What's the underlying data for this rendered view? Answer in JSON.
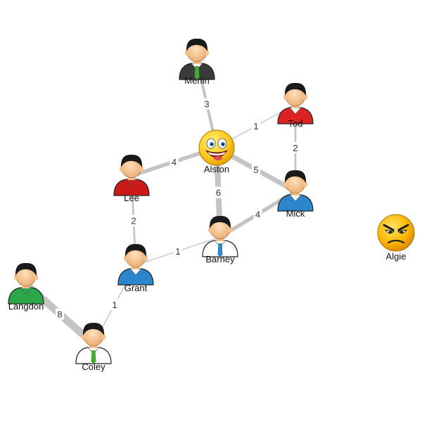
{
  "graph": {
    "nodes": [
      {
        "id": "merlin",
        "label": "Merlin",
        "icon": "person-icon",
        "shirt": "#3a3a3a",
        "tie": "#44aa33",
        "collar": "#ffffff"
      },
      {
        "id": "tod",
        "label": "Tod",
        "icon": "person-icon",
        "shirt": "#dd2222",
        "tie": "",
        "collar": "#ffffff"
      },
      {
        "id": "alston",
        "label": "Alston",
        "icon": "smiley-icon"
      },
      {
        "id": "lee",
        "label": "Lee",
        "icon": "person-icon",
        "shirt": "#cc1a1a",
        "tie": "",
        "collar": "#cc1a1a"
      },
      {
        "id": "mick",
        "label": "Mick",
        "icon": "person-icon",
        "shirt": "#2b86cc",
        "tie": "",
        "collar": "#ffffff"
      },
      {
        "id": "barney",
        "label": "Barney",
        "icon": "person-icon",
        "shirt": "#ffffff",
        "tie": "#2b86cc",
        "collar": "#ffffff"
      },
      {
        "id": "grant",
        "label": "Grant",
        "icon": "person-icon",
        "shirt": "#2b86cc",
        "tie": "",
        "collar": "#ffffff"
      },
      {
        "id": "langdon",
        "label": "Langdon",
        "icon": "person-icon",
        "shirt": "#2aa84a",
        "tie": "",
        "collar": "#2aa84a"
      },
      {
        "id": "coley",
        "label": "Coley",
        "icon": "person-icon",
        "shirt": "#ffffff",
        "tie": "#44aa33",
        "collar": "#ffffff"
      },
      {
        "id": "algie",
        "label": "Algie",
        "icon": "angry-face-icon"
      }
    ],
    "edges": [
      {
        "from": "merlin",
        "to": "alston",
        "weight": 3
      },
      {
        "from": "tod",
        "to": "alston",
        "weight": 1
      },
      {
        "from": "tod",
        "to": "mick",
        "weight": 2
      },
      {
        "from": "lee",
        "to": "alston",
        "weight": 4
      },
      {
        "from": "alston",
        "to": "mick",
        "weight": 5
      },
      {
        "from": "alston",
        "to": "barney",
        "weight": 6
      },
      {
        "from": "barney",
        "to": "mick",
        "weight": 4
      },
      {
        "from": "lee",
        "to": "grant",
        "weight": 2
      },
      {
        "from": "grant",
        "to": "barney",
        "weight": 1
      },
      {
        "from": "grant",
        "to": "coley",
        "weight": 1
      },
      {
        "from": "langdon",
        "to": "coley",
        "weight": 8
      }
    ],
    "colors": {
      "edge": "#c4c4c4",
      "skin": "#f6c08a",
      "hair": "#1a1a1a",
      "smiley_face": "#ffcc22",
      "angry_face": "#ffb800"
    }
  }
}
